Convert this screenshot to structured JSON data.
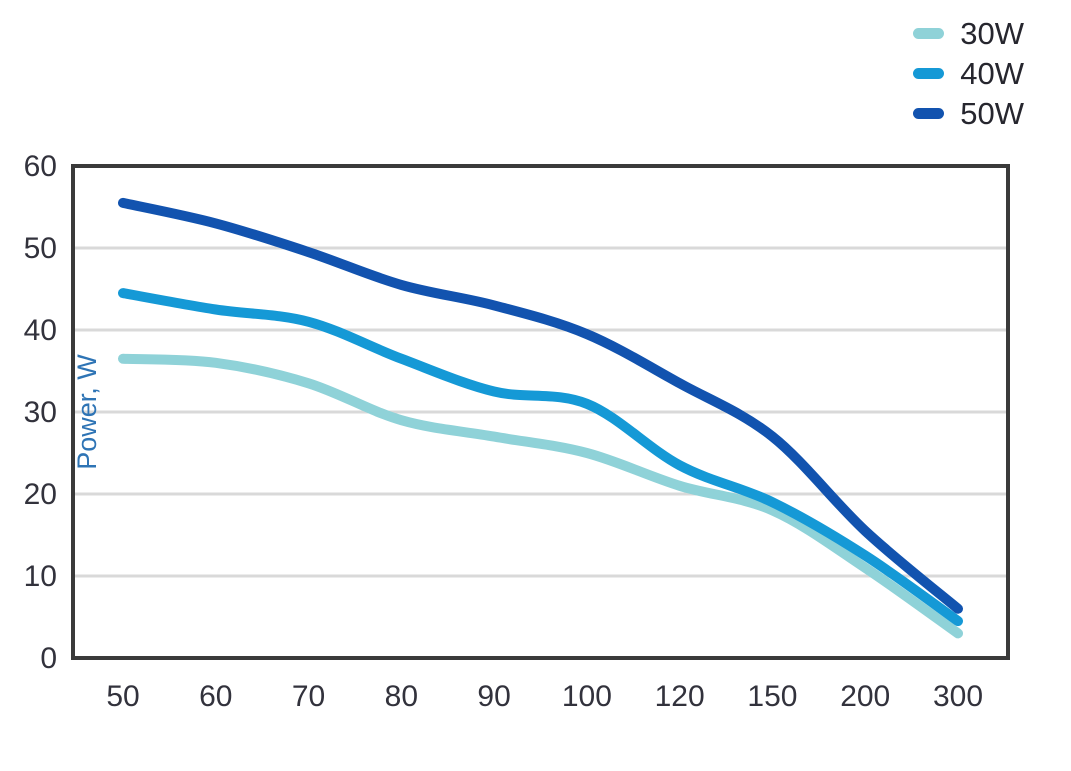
{
  "chart_data": {
    "type": "line",
    "title": "",
    "xlabel": "",
    "ylabel": "Power, W",
    "categories": [
      "50",
      "60",
      "70",
      "80",
      "90",
      "100",
      "120",
      "150",
      "200",
      "300"
    ],
    "series": [
      {
        "name": "30W",
        "color": "#8fd2d8",
        "values": [
          36.5,
          36,
          33.5,
          29,
          27,
          25,
          21,
          18,
          11,
          3
        ]
      },
      {
        "name": "40W",
        "color": "#1599d6",
        "values": [
          44.5,
          42.5,
          41,
          36.5,
          32.5,
          31,
          23.5,
          19,
          12.5,
          4.5
        ]
      },
      {
        "name": "50W",
        "color": "#1253af",
        "values": [
          55.5,
          53,
          49.5,
          45.5,
          43,
          39.5,
          33.5,
          27,
          15.5,
          6
        ]
      }
    ],
    "ylim": [
      0,
      60
    ],
    "yticks": [
      0,
      10,
      20,
      30,
      40,
      50,
      60
    ],
    "grid": "horizontal-only",
    "legend_position": "top-right",
    "x_axis_type": "categorical-even-spacing"
  },
  "styling": {
    "background": "#ffffff",
    "frame_color": "#3a3a3a",
    "grid_color": "#d9d9d9",
    "tick_label_color": "#32323c",
    "ylabel_color": "#2e74b5",
    "legend_text_color": "#26262e"
  }
}
